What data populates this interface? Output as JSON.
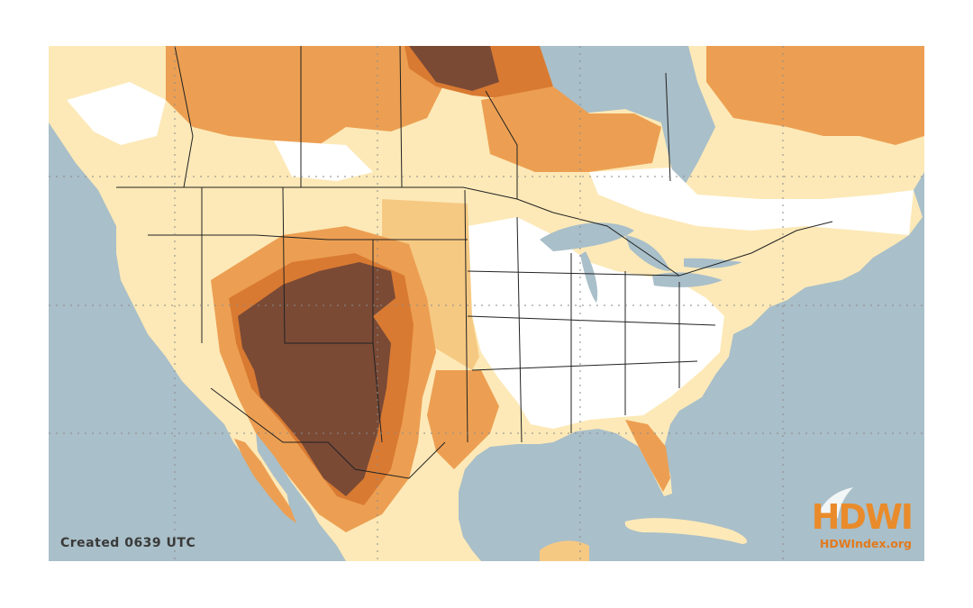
{
  "map": {
    "caption": "Created 0639 UTC",
    "logo_text": "HDWI",
    "logo_url": "HDWIndex.org",
    "colors": {
      "ocean": "#a9bfc9",
      "none": "#ffffff",
      "low": "#fde9b7",
      "light": "#f6c983",
      "medium": "#ec9f52",
      "high": "#d97a32",
      "extreme": "#7a4a35",
      "brand": "#e98b2a"
    }
  }
}
